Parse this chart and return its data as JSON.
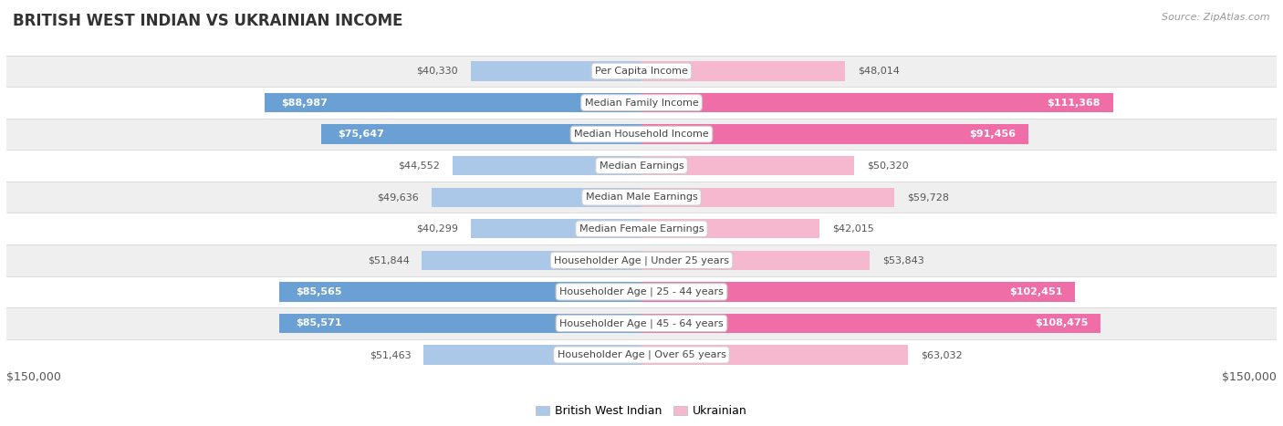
{
  "title": "BRITISH WEST INDIAN VS UKRAINIAN INCOME",
  "source": "Source: ZipAtlas.com",
  "categories": [
    "Per Capita Income",
    "Median Family Income",
    "Median Household Income",
    "Median Earnings",
    "Median Male Earnings",
    "Median Female Earnings",
    "Householder Age | Under 25 years",
    "Householder Age | 25 - 44 years",
    "Householder Age | 45 - 64 years",
    "Householder Age | Over 65 years"
  ],
  "british_values": [
    40330,
    88987,
    75647,
    44552,
    49636,
    40299,
    51844,
    85565,
    85571,
    51463
  ],
  "ukrainian_values": [
    48014,
    111368,
    91456,
    50320,
    59728,
    42015,
    53843,
    102451,
    108475,
    63032
  ],
  "british_labels": [
    "$40,330",
    "$88,987",
    "$75,647",
    "$44,552",
    "$49,636",
    "$40,299",
    "$51,844",
    "$85,565",
    "$85,571",
    "$51,463"
  ],
  "ukrainian_labels": [
    "$48,014",
    "$111,368",
    "$91,456",
    "$50,320",
    "$59,728",
    "$42,015",
    "$53,843",
    "$102,451",
    "$108,475",
    "$63,032"
  ],
  "max_value": 150000,
  "british_color_light": "#abc8e8",
  "british_color_dark": "#6aa0d4",
  "ukrainian_color_light": "#f5b8ce",
  "ukrainian_color_dark": "#ef6ea8",
  "label_color_dark": "#555555",
  "label_color_white": "#ffffff",
  "row_color_even": "#efefef",
  "row_color_odd": "#ffffff",
  "bar_height": 0.62,
  "legend_british": "British West Indian",
  "legend_ukrainian": "Ukrainian",
  "x_label_left": "$150,000",
  "x_label_right": "$150,000",
  "british_dark_threshold": 60000,
  "ukrainian_dark_threshold": 70000,
  "british_inside_label_threshold": 60000,
  "ukrainian_inside_label_threshold": 70000
}
